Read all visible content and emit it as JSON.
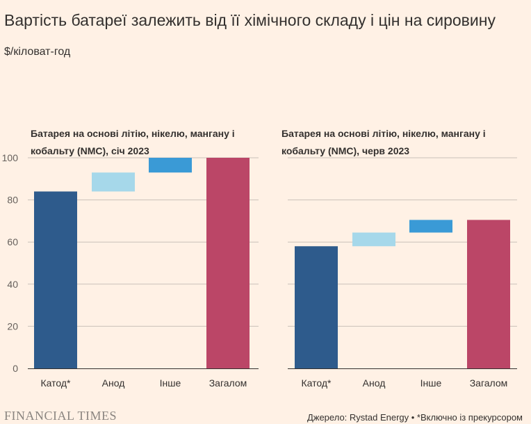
{
  "title": "Вартість батареї залежить від її хімічного складу і цін на сировину",
  "subtitle": "$/кіловат-год",
  "chart_data": [
    {
      "type": "bar",
      "title": "Батарея на основі літію, нікелю, мангану і кобальту (NMC), січ 2023",
      "categories": [
        "Катод*",
        "Анод",
        "Інше",
        "Загалом"
      ],
      "bars": [
        {
          "start": 0,
          "end": 84,
          "color": "#2e5b8c"
        },
        {
          "start": 84,
          "end": 93,
          "color": "#a6d8ea"
        },
        {
          "start": 93,
          "end": 100,
          "color": "#3a9ad6"
        },
        {
          "start": 0,
          "end": 100,
          "color": "#bb4667"
        }
      ],
      "ylim": [
        0,
        100
      ],
      "yticks": [
        0,
        20,
        40,
        60,
        80,
        100
      ],
      "grid": true
    },
    {
      "type": "bar",
      "title": "Батарея на основі літію, нікелю, мангану і кобальту (NMC), черв 2023",
      "categories": [
        "Катод*",
        "Анод",
        "Інше",
        "Загалом"
      ],
      "bars": [
        {
          "start": 0,
          "end": 58,
          "color": "#2e5b8c"
        },
        {
          "start": 58,
          "end": 64.5,
          "color": "#a6d8ea"
        },
        {
          "start": 64.5,
          "end": 70.5,
          "color": "#3a9ad6"
        },
        {
          "start": 0,
          "end": 70.5,
          "color": "#bb4667"
        }
      ],
      "ylim": [
        0,
        100
      ],
      "yticks": [
        0,
        20,
        40,
        60,
        80,
        100
      ],
      "grid": true
    }
  ],
  "footer": {
    "logo": "FINANCIAL TIMES",
    "source": "Джерело: Rystad Energy • *Включно із прекурсором"
  }
}
